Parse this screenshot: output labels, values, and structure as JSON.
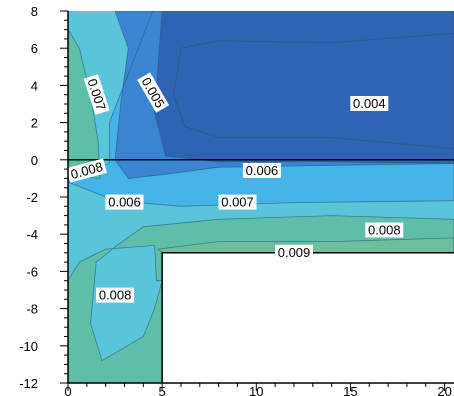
{
  "chart_data": {
    "type": "contour",
    "title": "",
    "xlabel": "",
    "ylabel": "",
    "x_ticks": [
      0,
      5,
      10,
      15,
      20
    ],
    "y_ticks": [
      8,
      6,
      4,
      2,
      0,
      -2,
      -4,
      -6,
      -8,
      -10,
      -12
    ],
    "xlim": [
      0,
      20.5
    ],
    "ylim": [
      -12,
      8
    ],
    "contour_levels": [
      0.004,
      0.005,
      0.006,
      0.007,
      0.008,
      0.009
    ],
    "level_colors": {
      "0.004": "#2f64b4",
      "0.005": "#3a84d2",
      "0.006": "#44b3e8",
      "0.007": "#58c5d8",
      "0.008": "#5dbfa8",
      "0.009": "#6cbf9c"
    },
    "contour_labels": [
      {
        "text": "0.007",
        "x": 1.5,
        "y": 3.5,
        "angle": 72
      },
      {
        "text": "0.005",
        "x": 4.5,
        "y": 3.6,
        "angle": 60
      },
      {
        "text": "0.004",
        "x": 16.0,
        "y": 3.0,
        "angle": 0
      },
      {
        "text": "0.008",
        "x": 1.0,
        "y": -0.6,
        "angle": -15
      },
      {
        "text": "0.006",
        "x": 10.3,
        "y": -0.6,
        "angle": 0
      },
      {
        "text": "0.006",
        "x": 3.0,
        "y": -2.3,
        "angle": 0
      },
      {
        "text": "0.007",
        "x": 9.0,
        "y": -2.3,
        "angle": 0
      },
      {
        "text": "0.008",
        "x": 16.8,
        "y": -3.8,
        "angle": 0
      },
      {
        "text": "0.009",
        "x": 12.0,
        "y": -5.0,
        "angle": 0
      },
      {
        "text": "0.008",
        "x": 2.5,
        "y": -7.3,
        "angle": 0
      }
    ],
    "interface_line_y": 0,
    "obstacle": {
      "x": [
        5,
        20.5
      ],
      "y": [
        -12,
        -5
      ]
    }
  }
}
